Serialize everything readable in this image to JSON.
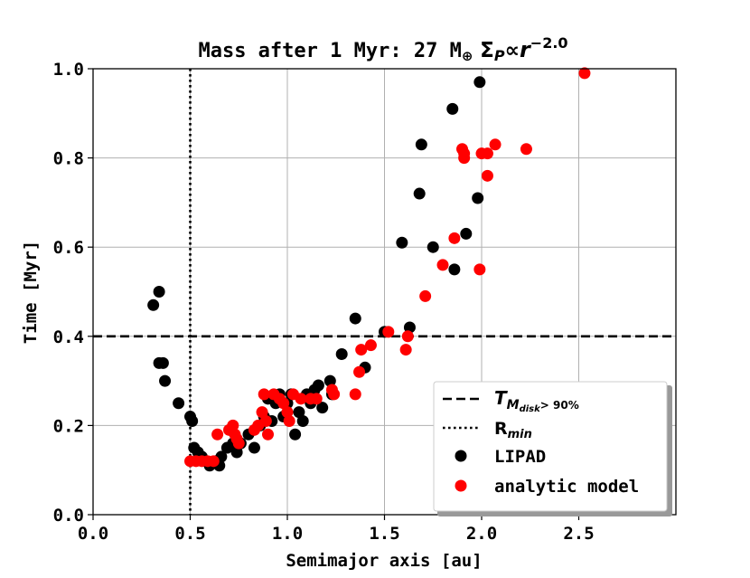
{
  "chart_data": {
    "type": "scatter",
    "title": {
      "main": "Mass after 1 Myr: 27 M",
      "mass_symbol": "⊕",
      "sigma": "Σ",
      "sigma_sub": "P",
      "prop": "∝",
      "r": "r",
      "exponent": "−2.0"
    },
    "xlabel": "Semimajor axis [au]",
    "ylabel": "Time [Myr]",
    "xlim": [
      0.0,
      3.0
    ],
    "ylim": [
      0.0,
      1.0
    ],
    "xticks": [
      "0.0",
      "0.5",
      "1.0",
      "1.5",
      "2.0",
      "2.5"
    ],
    "yticks": [
      "0.0",
      "0.2",
      "0.4",
      "0.6",
      "0.8",
      "1.0"
    ],
    "grid": true,
    "legend_position": "bottom-right",
    "hline": {
      "y": 0.4,
      "style": "dashed",
      "label": "T",
      "label_sub": "M",
      "label_subsub": "disk",
      "label_cond": "> 90%"
    },
    "vline": {
      "x": 0.5,
      "style": "dotted",
      "label": "R",
      "label_sub": "min"
    },
    "series": [
      {
        "name": "LIPAD",
        "color": "#000000",
        "points": [
          [
            0.31,
            0.47
          ],
          [
            0.34,
            0.5
          ],
          [
            0.34,
            0.34
          ],
          [
            0.36,
            0.34
          ],
          [
            0.37,
            0.3
          ],
          [
            0.44,
            0.25
          ],
          [
            0.5,
            0.22
          ],
          [
            0.51,
            0.21
          ],
          [
            0.52,
            0.15
          ],
          [
            0.54,
            0.14
          ],
          [
            0.56,
            0.13
          ],
          [
            0.58,
            0.12
          ],
          [
            0.6,
            0.11
          ],
          [
            0.63,
            0.12
          ],
          [
            0.65,
            0.11
          ],
          [
            0.66,
            0.13
          ],
          [
            0.69,
            0.15
          ],
          [
            0.72,
            0.16
          ],
          [
            0.74,
            0.14
          ],
          [
            0.76,
            0.16
          ],
          [
            0.8,
            0.18
          ],
          [
            0.83,
            0.15
          ],
          [
            0.86,
            0.2
          ],
          [
            0.88,
            0.22
          ],
          [
            0.9,
            0.26
          ],
          [
            0.92,
            0.21
          ],
          [
            0.94,
            0.25
          ],
          [
            0.96,
            0.27
          ],
          [
            0.98,
            0.22
          ],
          [
            1.0,
            0.25
          ],
          [
            1.02,
            0.27
          ],
          [
            1.04,
            0.18
          ],
          [
            1.06,
            0.23
          ],
          [
            1.08,
            0.21
          ],
          [
            1.1,
            0.27
          ],
          [
            1.12,
            0.25
          ],
          [
            1.14,
            0.28
          ],
          [
            1.16,
            0.29
          ],
          [
            1.18,
            0.24
          ],
          [
            1.22,
            0.3
          ],
          [
            1.23,
            0.27
          ],
          [
            1.28,
            0.36
          ],
          [
            1.35,
            0.44
          ],
          [
            1.4,
            0.33
          ],
          [
            1.5,
            0.41
          ],
          [
            1.59,
            0.61
          ],
          [
            1.63,
            0.42
          ],
          [
            1.68,
            0.72
          ],
          [
            1.69,
            0.83
          ],
          [
            1.75,
            0.6
          ],
          [
            1.85,
            0.91
          ],
          [
            1.86,
            0.55
          ],
          [
            1.92,
            0.63
          ],
          [
            1.98,
            0.71
          ],
          [
            1.99,
            0.97
          ]
        ]
      },
      {
        "name": "analytic model",
        "color": "#ff0000",
        "points": [
          [
            0.5,
            0.12
          ],
          [
            0.53,
            0.12
          ],
          [
            0.56,
            0.12
          ],
          [
            0.59,
            0.12
          ],
          [
            0.62,
            0.12
          ],
          [
            0.64,
            0.18
          ],
          [
            0.7,
            0.19
          ],
          [
            0.72,
            0.2
          ],
          [
            0.74,
            0.17
          ],
          [
            0.75,
            0.16
          ],
          [
            0.73,
            0.18
          ],
          [
            0.83,
            0.19
          ],
          [
            0.85,
            0.2
          ],
          [
            0.87,
            0.23
          ],
          [
            0.89,
            0.21
          ],
          [
            0.9,
            0.18
          ],
          [
            0.88,
            0.27
          ],
          [
            0.93,
            0.27
          ],
          [
            0.96,
            0.26
          ],
          [
            0.98,
            0.25
          ],
          [
            1.0,
            0.23
          ],
          [
            1.01,
            0.21
          ],
          [
            1.03,
            0.27
          ],
          [
            1.07,
            0.26
          ],
          [
            1.12,
            0.26
          ],
          [
            1.15,
            0.26
          ],
          [
            1.23,
            0.28
          ],
          [
            1.24,
            0.27
          ],
          [
            1.35,
            0.27
          ],
          [
            1.37,
            0.32
          ],
          [
            1.38,
            0.37
          ],
          [
            1.43,
            0.38
          ],
          [
            1.52,
            0.41
          ],
          [
            1.61,
            0.37
          ],
          [
            1.62,
            0.4
          ],
          [
            1.71,
            0.49
          ],
          [
            1.8,
            0.56
          ],
          [
            1.86,
            0.62
          ],
          [
            1.9,
            0.82
          ],
          [
            1.91,
            0.81
          ],
          [
            1.91,
            0.8
          ],
          [
            1.99,
            0.55
          ],
          [
            2.0,
            0.81
          ],
          [
            2.03,
            0.76
          ],
          [
            2.03,
            0.81
          ],
          [
            2.07,
            0.83
          ],
          [
            2.23,
            0.82
          ],
          [
            2.53,
            0.99
          ]
        ]
      }
    ]
  }
}
